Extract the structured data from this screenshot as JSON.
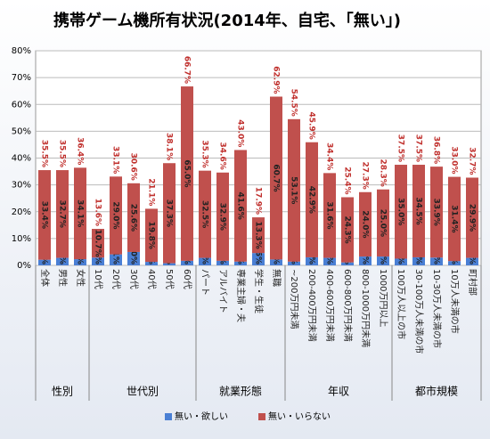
{
  "chart_data": {
    "type": "stacked-bar",
    "title": "携帯ゲーム機所有状況(2014年、自宅、「無い」)",
    "categories": [
      "全体",
      "男性",
      "女性",
      "10代",
      "20代",
      "30代",
      "40代",
      "50代",
      "60代",
      "パート",
      "アルバイト",
      "専業主婦・夫",
      "学生・生徒",
      "無職",
      "~200万円未満",
      "200-400万円未満",
      "400-600万円未満",
      "600-800万円未満",
      "800-1000万円未満",
      "1000万円以上",
      "100万人以上の市",
      "30-100万人未満の市",
      "10-30万人未満の市",
      "10万人未満の市",
      "町村部"
    ],
    "category_groups": [
      "性別",
      "性別",
      "性別",
      "世代別",
      "世代別",
      "世代別",
      "世代別",
      "世代別",
      "世代別",
      "就業形態",
      "就業形態",
      "就業形態",
      "就業形態",
      "就業形態",
      "年収",
      "年収",
      "年収",
      "年収",
      "年収",
      "年収",
      "都市規模",
      "都市規模",
      "都市規模",
      "都市規模",
      "都市規模"
    ],
    "series": [
      {
        "name": "無い・欲しい",
        "color": "#4a7fd4",
        "values": [
          2.1,
          2.8,
          2.3,
          2.9,
          4.1,
          5.0,
          1.3,
          0.8,
          1.7,
          2.8,
          1.7,
          1.4,
          4.6,
          2.2,
          1.4,
          3.0,
          2.8,
          1.1,
          3.3,
          3.3,
          2.5,
          3.0,
          2.9,
          1.6,
          2.8
        ],
        "value_labels": [
          "2.1%",
          "2.8%",
          "2.3%",
          "2.9%",
          "4.1%",
          "5.0%",
          "1.3%",
          "0.8%",
          "1.7%",
          "2.8%",
          "1.7%",
          "1.4%",
          "4.6%",
          "2.2%",
          "1.4%",
          "3.0%",
          "2.8%",
          "1.1%",
          "3.3%",
          "3.3%",
          "2.5%",
          "3.0%",
          "2.9%",
          "1.6%",
          "2.8%"
        ]
      },
      {
        "name": "無い・いらない",
        "color": "#c0504d",
        "values": [
          33.4,
          32.7,
          34.1,
          10.7,
          29.0,
          25.6,
          19.8,
          37.3,
          65.0,
          32.5,
          32.9,
          41.6,
          13.3,
          60.7,
          53.1,
          42.9,
          31.6,
          24.3,
          24.0,
          25.0,
          35.0,
          34.5,
          33.9,
          31.4,
          29.9
        ],
        "value_labels": [
          "33.4%",
          "32.7%",
          "34.1%",
          "10.7%",
          "29.0%",
          "25.6%",
          "19.8%",
          "37.3%",
          "65.0%",
          "32.5%",
          "32.9%",
          "41.6%",
          "13.3%",
          "60.7%",
          "53.1%",
          "42.9%",
          "31.6%",
          "24.3%",
          "24.0%",
          "25.0%",
          "35.0%",
          "34.5%",
          "33.9%",
          "31.4%",
          "29.9%"
        ]
      }
    ],
    "totals": {
      "values": [
        35.5,
        35.5,
        36.4,
        13.6,
        33.1,
        30.6,
        21.1,
        38.1,
        66.7,
        35.3,
        34.6,
        43.0,
        17.9,
        62.9,
        54.5,
        45.9,
        34.4,
        25.4,
        27.3,
        28.3,
        37.5,
        37.5,
        36.8,
        33.0,
        32.7
      ],
      "value_labels": [
        "35.5%",
        "35.5%",
        "36.4%",
        "13.6%",
        "33.1%",
        "30.6%",
        "21.1%",
        "38.1%",
        "66.7%",
        "35.3%",
        "34.6%",
        "43.0%",
        "17.9%",
        "62.9%",
        "54.5%",
        "45.9%",
        "34.4%",
        "25.4%",
        "27.3%",
        "28.3%",
        "37.5%",
        "37.5%",
        "36.8%",
        "33.0%",
        "32.7%"
      ]
    },
    "ylim": [
      0,
      80
    ],
    "yticks": [
      {
        "value": 0,
        "label": "0%"
      },
      {
        "value": 10,
        "label": "10%"
      },
      {
        "value": 20,
        "label": "20%"
      },
      {
        "value": 30,
        "label": "30%"
      },
      {
        "value": 40,
        "label": "40%"
      },
      {
        "value": 50,
        "label": "50%"
      },
      {
        "value": 60,
        "label": "60%"
      },
      {
        "value": 70,
        "label": "70%"
      },
      {
        "value": 80,
        "label": "80%"
      }
    ],
    "grid": true,
    "legend": "bottom"
  }
}
